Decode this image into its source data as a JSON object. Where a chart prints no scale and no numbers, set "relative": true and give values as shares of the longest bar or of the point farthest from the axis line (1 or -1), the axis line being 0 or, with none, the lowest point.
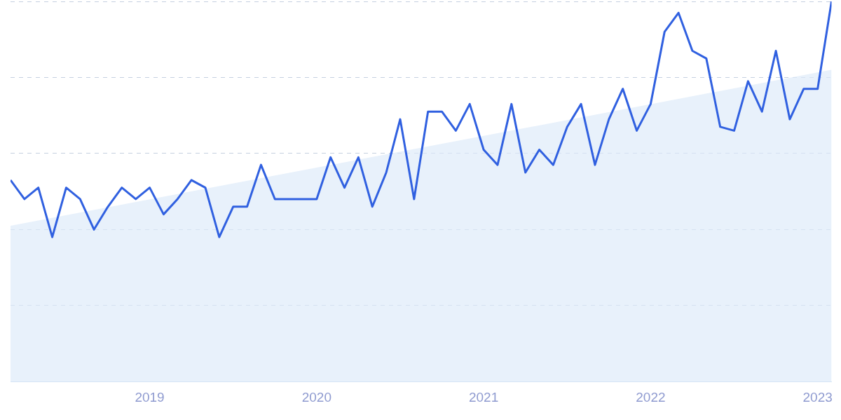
{
  "chart_data": {
    "type": "line",
    "relative": true,
    "x": [
      "2018-03",
      "2018-04",
      "2018-05",
      "2018-06",
      "2018-07",
      "2018-08",
      "2018-09",
      "2018-10",
      "2018-11",
      "2018-12",
      "2019-01",
      "2019-02",
      "2019-03",
      "2019-04",
      "2019-05",
      "2019-06",
      "2019-07",
      "2019-08",
      "2019-09",
      "2019-10",
      "2019-11",
      "2019-12",
      "2020-01",
      "2020-02",
      "2020-03",
      "2020-04",
      "2020-05",
      "2020-06",
      "2020-07",
      "2020-08",
      "2020-09",
      "2020-10",
      "2020-11",
      "2020-12",
      "2021-01",
      "2021-02",
      "2021-03",
      "2021-04",
      "2021-05",
      "2021-06",
      "2021-07",
      "2021-08",
      "2021-09",
      "2021-10",
      "2021-11",
      "2021-12",
      "2022-01",
      "2022-02",
      "2022-03",
      "2022-04",
      "2022-05",
      "2022-06",
      "2022-07",
      "2022-08",
      "2022-09",
      "2022-10",
      "2022-11",
      "2022-12",
      "2023-01",
      "2023-02"
    ],
    "xlim": [
      "2018-03",
      "2023-02"
    ],
    "xticks": [
      "2019",
      "2020",
      "2021",
      "2022",
      "2023"
    ],
    "grid": "y",
    "line_style": "solid",
    "marker": "none",
    "series": [
      {
        "type": "area",
        "color": "#dceaf9",
        "x": [
          "2018-03",
          "2023-02"
        ],
        "values": [
          0.41,
          0.82
        ]
      },
      {
        "color": "#3060e0",
        "values": [
          0.53,
          0.48,
          0.51,
          0.38,
          0.51,
          0.48,
          0.4,
          0.46,
          0.51,
          0.48,
          0.51,
          0.44,
          0.48,
          0.53,
          0.51,
          0.38,
          0.46,
          0.46,
          0.57,
          0.48,
          0.48,
          0.48,
          0.48,
          0.59,
          0.51,
          0.59,
          0.46,
          0.55,
          0.69,
          0.48,
          0.71,
          0.71,
          0.66,
          0.73,
          0.61,
          0.57,
          0.73,
          0.55,
          0.61,
          0.57,
          0.67,
          0.73,
          0.57,
          0.69,
          0.77,
          0.66,
          0.73,
          0.92,
          0.97,
          0.87,
          0.85,
          0.67,
          0.66,
          0.79,
          0.71,
          0.87,
          0.69,
          0.77,
          0.77,
          1.0
        ]
      }
    ]
  }
}
